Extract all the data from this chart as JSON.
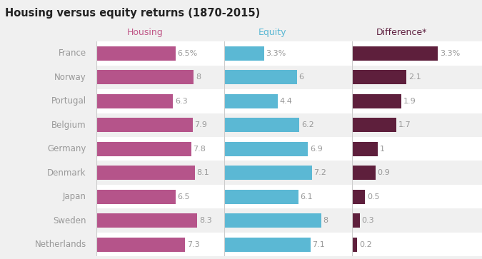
{
  "title": "Housing versus equity returns (1870-2015)",
  "countries": [
    "France",
    "Norway",
    "Portugal",
    "Belgium",
    "Germany",
    "Denmark",
    "Japan",
    "Sweden",
    "Netherlands"
  ],
  "housing": [
    6.5,
    8.0,
    6.3,
    7.9,
    7.8,
    8.1,
    6.5,
    8.3,
    7.3
  ],
  "equity": [
    3.3,
    6.0,
    4.4,
    6.2,
    6.9,
    7.2,
    6.1,
    8.0,
    7.1
  ],
  "difference": [
    3.3,
    2.1,
    1.9,
    1.7,
    1.0,
    0.9,
    0.5,
    0.3,
    0.2
  ],
  "housing_labels": [
    "6.5%",
    "8",
    "6.3",
    "7.9",
    "7.8",
    "8.1",
    "6.5",
    "8.3",
    "7.3"
  ],
  "equity_labels": [
    "3.3%",
    "6",
    "4.4",
    "6.2",
    "6.9",
    "7.2",
    "6.1",
    "8",
    "7.1"
  ],
  "diff_labels": [
    "3.3%",
    "2.1",
    "1.9",
    "1.7",
    "1",
    "0.9",
    "0.5",
    "0.3",
    "0.2"
  ],
  "housing_color": "#b5548a",
  "equity_color": "#5bb8d4",
  "diff_color": "#5e1f3c",
  "title_color": "#222222",
  "header_housing_color": "#c05888",
  "header_equity_color": "#5bb8d4",
  "header_diff_color": "#5e2040",
  "country_color": "#999999",
  "value_color": "#999999",
  "bg_color": "#f0f0f0",
  "row_bg_color": "#f0f0f0",
  "row_alt_color": "#ffffff",
  "divider_color": "#cccccc",
  "bar_height": 0.6,
  "housing_xlim": 10.5,
  "equity_xlim": 10.5,
  "diff_xlim": 5.0
}
